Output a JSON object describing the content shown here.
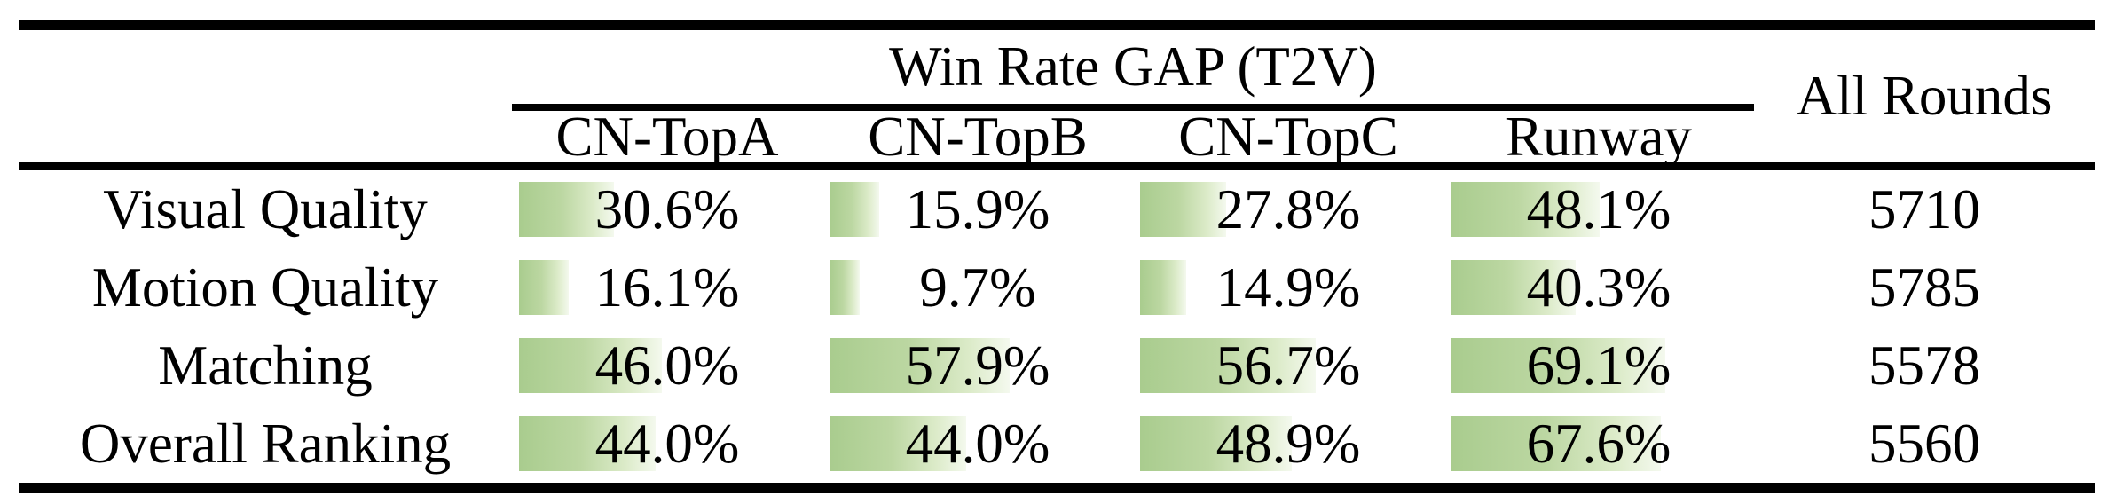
{
  "table": {
    "group_header": "Win Rate GAP (T2V)",
    "all_rounds_header": "All Rounds",
    "columns": [
      "CN-TopA",
      "CN-TopB",
      "CN-TopC",
      "Runway"
    ],
    "row_labels": [
      "Visual Quality",
      "Motion Quality",
      "Matching",
      "Overall Ranking"
    ],
    "rows": [
      {
        "label": "Visual Quality",
        "values": [
          30.6,
          15.9,
          27.8,
          48.1
        ],
        "values_display": [
          "30.6%",
          "15.9%",
          "27.8%",
          "48.1%"
        ],
        "all_rounds": "5710"
      },
      {
        "label": "Motion Quality",
        "values": [
          16.1,
          9.7,
          14.9,
          40.3
        ],
        "values_display": [
          "16.1%",
          "9.7%",
          "14.9%",
          "40.3%"
        ],
        "all_rounds": "5785"
      },
      {
        "label": "Matching",
        "values": [
          46.0,
          57.9,
          56.7,
          69.1
        ],
        "values_display": [
          "46.0%",
          "57.9%",
          "56.7%",
          "69.1%"
        ],
        "all_rounds": "5578"
      },
      {
        "label": "Overall Ranking",
        "values": [
          44.0,
          44.0,
          48.9,
          67.6
        ],
        "values_display": [
          "44.0%",
          "44.0%",
          "48.9%",
          "67.6%"
        ],
        "all_rounds": "5560"
      }
    ],
    "colors": {
      "bar_gradient_start": "#a9cc8e",
      "bar_gradient_end": "#f4f9ee",
      "rule_color": "#000000",
      "text_color": "#000000"
    }
  },
  "chart_data": {
    "type": "table",
    "title": "Win Rate GAP (T2V)",
    "columns": [
      "CN-TopA",
      "CN-TopB",
      "CN-TopC",
      "Runway",
      "All Rounds"
    ],
    "categories": [
      "Visual Quality",
      "Motion Quality",
      "Matching",
      "Overall Ranking"
    ],
    "series": [
      {
        "name": "CN-TopA",
        "values": [
          30.6,
          16.1,
          46.0,
          44.0
        ],
        "unit": "%"
      },
      {
        "name": "CN-TopB",
        "values": [
          15.9,
          9.7,
          57.9,
          44.0
        ],
        "unit": "%"
      },
      {
        "name": "CN-TopC",
        "values": [
          27.8,
          14.9,
          56.7,
          48.9
        ],
        "unit": "%"
      },
      {
        "name": "Runway",
        "values": [
          48.1,
          40.3,
          69.1,
          67.6
        ],
        "unit": "%"
      },
      {
        "name": "All Rounds",
        "values": [
          5710,
          5785,
          5578,
          5560
        ],
        "unit": "count"
      }
    ],
    "layout_hints": {
      "bars": "in-cell horizontal data bars, width proportional to percentage (0-100% of column width)",
      "bar_color": "green gradient fading right",
      "grid": "off"
    }
  }
}
